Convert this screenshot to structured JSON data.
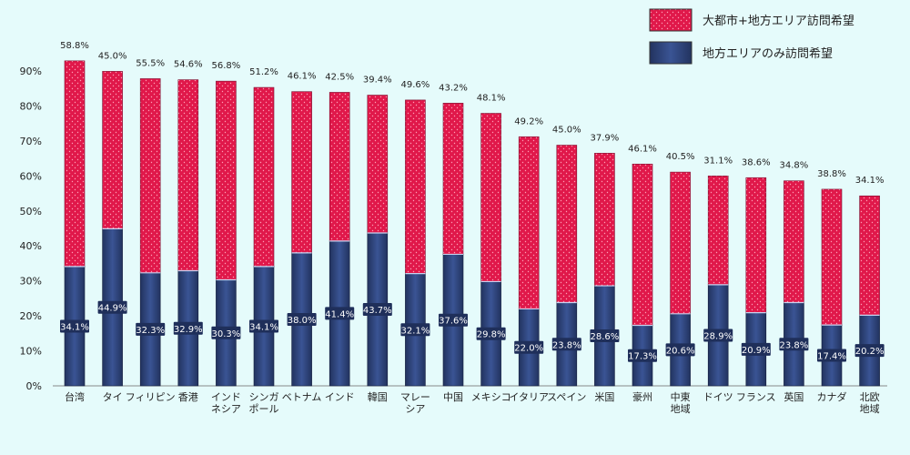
{
  "chart_data": {
    "type": "bar",
    "stacked": true,
    "categories": [
      [
        "台湾"
      ],
      [
        "タイ"
      ],
      [
        "フィリピン"
      ],
      [
        "香港"
      ],
      [
        "インド",
        "ネシア"
      ],
      [
        "シンガ",
        "ポール"
      ],
      [
        "ベトナム"
      ],
      [
        "インド"
      ],
      [
        "韓国"
      ],
      [
        "マレー",
        "シア"
      ],
      [
        "中国"
      ],
      [
        "メキシコ"
      ],
      [
        "イタリア"
      ],
      [
        "スペイン"
      ],
      [
        "米国"
      ],
      [
        "豪州"
      ],
      [
        "中東",
        "地域"
      ],
      [
        "ドイツ"
      ],
      [
        "フランス"
      ],
      [
        "英国"
      ],
      [
        "カナダ"
      ],
      [
        "北欧",
        "地域"
      ]
    ],
    "series": [
      {
        "name": "地方エリアのみ訪問希望",
        "color": "#2b3f75",
        "values": [
          34.1,
          44.9,
          32.3,
          32.9,
          30.3,
          34.1,
          38.0,
          41.4,
          43.7,
          32.1,
          37.6,
          29.8,
          22.0,
          23.8,
          28.6,
          17.3,
          20.6,
          28.9,
          20.9,
          23.8,
          17.4,
          20.2
        ],
        "labels": [
          "34.1%",
          "44.9%",
          "32.3%",
          "32.9%",
          "30.3%",
          "34.1%",
          "38.0%",
          "41.4%",
          "43.7%",
          "32.1%",
          "37.6%",
          "29.8%",
          "22.0%",
          "23.8%",
          "28.6%",
          "17.3%",
          "20.6%",
          "28.9%",
          "20.9%",
          "23.8%",
          "17.4%",
          "20.2%"
        ]
      },
      {
        "name": "大都市+地方エリア訪問希望",
        "color": "#e0184a",
        "values": [
          58.8,
          45.0,
          55.5,
          54.6,
          56.8,
          51.2,
          46.1,
          42.5,
          39.4,
          49.6,
          43.2,
          48.1,
          49.2,
          45.0,
          37.9,
          46.1,
          40.5,
          31.1,
          38.6,
          34.8,
          38.8,
          34.1
        ],
        "labels": [
          "58.8%",
          "45.0%",
          "55.5%",
          "54.6%",
          "56.8%",
          "51.2%",
          "46.1%",
          "42.5%",
          "39.4%",
          "49.6%",
          "43.2%",
          "48.1%",
          "49.2%",
          "45.0%",
          "37.9%",
          "46.1%",
          "40.5%",
          "31.1%",
          "38.6%",
          "34.8%",
          "38.8%",
          "34.1%"
        ]
      }
    ],
    "ylim": [
      0,
      90
    ],
    "ytick_labels": [
      "0%",
      "10%",
      "20%",
      "30%",
      "40%",
      "50%",
      "60%",
      "70%",
      "80%",
      "90%"
    ],
    "grid": false,
    "legend_position": "top-right"
  }
}
